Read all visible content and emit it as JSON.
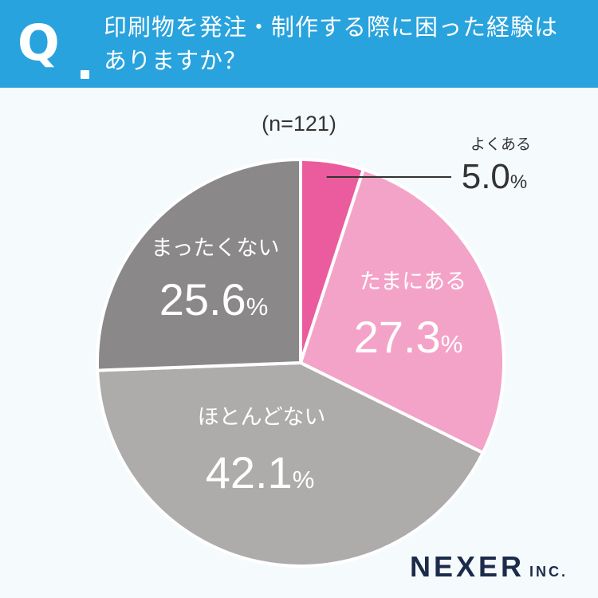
{
  "header": {
    "q_mark": "Q",
    "question_lines": [
      "印刷物を発注・制作する際に困った経験は",
      "ありますか？"
    ]
  },
  "sample_size": "(n=121)",
  "logo": {
    "main": "NEXER",
    "suffix": "INC."
  },
  "colors": {
    "header_bg": "#29a3dd",
    "often": "#ea5c9d",
    "sometimes": "#f4a3c8",
    "rarely": "#aeabab",
    "never": "#8b8889"
  },
  "chart_data": {
    "type": "pie",
    "title": "",
    "slices": [
      {
        "label": "よくある",
        "value": 5.0,
        "display": "5.0",
        "color": "#ea5c9d"
      },
      {
        "label": "たまにある",
        "value": 27.3,
        "display": "27.3",
        "color": "#f4a3c8"
      },
      {
        "label": "ほとんどない",
        "value": 42.1,
        "display": "42.1",
        "color": "#aeabab"
      },
      {
        "label": "まったくない",
        "value": 25.6,
        "display": "25.6",
        "color": "#8b8889"
      }
    ],
    "unit": "%"
  }
}
